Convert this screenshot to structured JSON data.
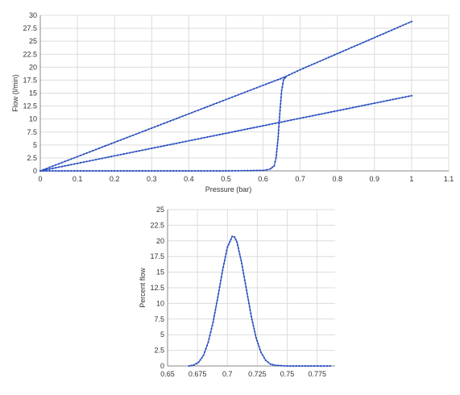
{
  "colors": {
    "series": "#2a4fbf",
    "grid": "#dcdcdc",
    "axis": "#8a8a8a",
    "text": "#333333"
  },
  "chart_data": [
    {
      "type": "line",
      "xlabel": "Pressure (bar)",
      "ylabel": "Flow (l/min)",
      "xlim": [
        0,
        1.1
      ],
      "ylim": [
        0,
        30
      ],
      "xticks": [
        "0",
        "0.1",
        "0.2",
        "0.3",
        "0.4",
        "0.5",
        "0.6",
        "0.7",
        "0.8",
        "0.9",
        "1",
        "1.1"
      ],
      "yticks": [
        "0",
        "2.5",
        "5",
        "7.5",
        "10",
        "12.5",
        "15",
        "17.5",
        "20",
        "22.5",
        "25",
        "27.5",
        "30"
      ],
      "grid": true,
      "series": [
        {
          "x": [
            0,
            0.1,
            0.2,
            0.3,
            0.4,
            0.5,
            0.6,
            0.655,
            0.7,
            0.8,
            0.9,
            1.0
          ],
          "y": [
            0,
            2.75,
            5.5,
            8.25,
            11.0,
            13.75,
            16.5,
            18.0,
            19.5,
            22.6,
            25.7,
            28.8
          ]
        },
        {
          "x": [
            0,
            0.1,
            0.2,
            0.3,
            0.4,
            0.5,
            0.6,
            0.7,
            0.8,
            0.9,
            1.0
          ],
          "y": [
            0,
            1.45,
            2.9,
            4.35,
            5.8,
            7.25,
            8.7,
            10.15,
            11.6,
            13.05,
            14.5
          ]
        },
        {
          "x": [
            0,
            0.1,
            0.2,
            0.3,
            0.4,
            0.5,
            0.55,
            0.6,
            0.61,
            0.62,
            0.63,
            0.635,
            0.64,
            0.645,
            0.65,
            0.655,
            0.66
          ],
          "y": [
            0,
            0,
            0,
            0,
            0,
            0,
            0.05,
            0.1,
            0.2,
            0.4,
            1.0,
            2.5,
            6.0,
            11.0,
            15.5,
            17.5,
            18.0
          ]
        }
      ]
    },
    {
      "type": "line",
      "xlabel": "",
      "ylabel": "Percent flow",
      "xlim": [
        0.65,
        0.79
      ],
      "ylim": [
        0,
        25
      ],
      "xticks": [
        "0.65",
        "0.675",
        "0.7",
        "0.725",
        "0.75",
        "0.775"
      ],
      "yticks": [
        "0",
        "2.5",
        "5",
        "7.5",
        "10",
        "12.5",
        "15",
        "17.5",
        "20",
        "22.5",
        "25"
      ],
      "grid": true,
      "series": [
        {
          "x": [
            0.668,
            0.672,
            0.676,
            0.68,
            0.684,
            0.688,
            0.692,
            0.696,
            0.7,
            0.704,
            0.706,
            0.708,
            0.712,
            0.716,
            0.72,
            0.724,
            0.728,
            0.732,
            0.736,
            0.74,
            0.75,
            0.76,
            0.77,
            0.786
          ],
          "y": [
            0,
            0.15,
            0.6,
            1.7,
            3.8,
            7.0,
            11.0,
            15.3,
            19.0,
            20.7,
            20.6,
            19.8,
            16.4,
            12.1,
            7.9,
            4.5,
            2.2,
            0.9,
            0.3,
            0.1,
            0,
            0,
            0,
            0
          ]
        }
      ]
    }
  ]
}
